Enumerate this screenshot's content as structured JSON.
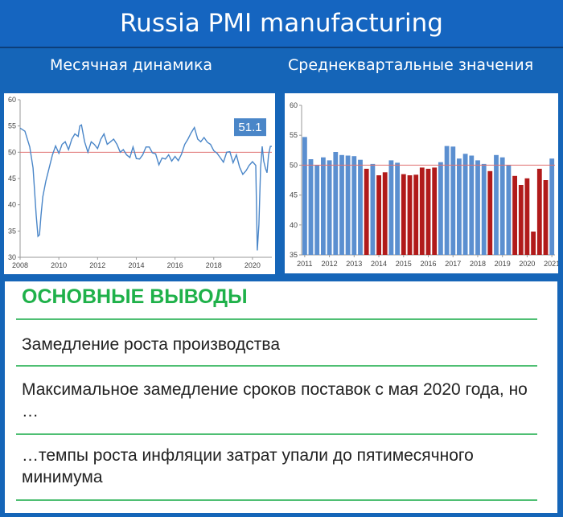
{
  "header": {
    "title": "Russia PMI manufacturing"
  },
  "panels": {
    "left_subtitle": "Месячная динамика",
    "right_subtitle": "Среднеквартальные значения"
  },
  "findings": {
    "title": "ОСНОВНЫЕ ВЫВОДЫ",
    "items": [
      "Замедление роста производства",
      "Максимальное замедление сроков поставок с мая 2020 года, но …",
      "…темпы роста инфляции затрат упали до пятимесячного минимума"
    ]
  },
  "chart_data": [
    {
      "type": "line",
      "xlim": [
        2008,
        2021
      ],
      "ylim": [
        30,
        60
      ],
      "x_ticks": [
        "2008",
        "2010",
        "2012",
        "2014",
        "2016",
        "2018",
        "2020"
      ],
      "y_ticks": [
        "30",
        "35",
        "40",
        "45",
        "50",
        "55",
        "60"
      ],
      "reference_line": 50,
      "line_color": "#4a86c8",
      "reference_color": "#e07070",
      "callout": {
        "label": "51.1",
        "color": "#4a86c8"
      },
      "x": [
        2008.0,
        2008.25,
        2008.5,
        2008.67,
        2008.83,
        2008.92,
        2009.0,
        2009.08,
        2009.17,
        2009.33,
        2009.5,
        2009.67,
        2009.83,
        2010.0,
        2010.17,
        2010.33,
        2010.5,
        2010.67,
        2010.83,
        2011.0,
        2011.08,
        2011.17,
        2011.33,
        2011.5,
        2011.67,
        2011.83,
        2012.0,
        2012.17,
        2012.33,
        2012.5,
        2012.67,
        2012.83,
        2013.0,
        2013.17,
        2013.33,
        2013.5,
        2013.67,
        2013.83,
        2014.0,
        2014.17,
        2014.33,
        2014.5,
        2014.67,
        2014.83,
        2015.0,
        2015.17,
        2015.33,
        2015.5,
        2015.67,
        2015.83,
        2016.0,
        2016.17,
        2016.33,
        2016.5,
        2016.67,
        2016.83,
        2017.0,
        2017.17,
        2017.33,
        2017.5,
        2017.67,
        2017.83,
        2018.0,
        2018.17,
        2018.33,
        2018.5,
        2018.67,
        2018.83,
        2019.0,
        2019.17,
        2019.33,
        2019.5,
        2019.67,
        2019.83,
        2020.0,
        2020.17,
        2020.25,
        2020.33,
        2020.42,
        2020.5,
        2020.58,
        2020.67,
        2020.75,
        2020.83,
        2020.92,
        2021.0
      ],
      "y": [
        54.6,
        54.0,
        51.0,
        47.0,
        38.0,
        34.0,
        34.3,
        38.0,
        41.5,
        44.5,
        47.0,
        49.5,
        51.2,
        49.8,
        51.5,
        52.0,
        50.5,
        52.5,
        53.5,
        53.0,
        55.0,
        55.2,
        52.0,
        50.0,
        52.0,
        51.5,
        50.7,
        52.5,
        53.5,
        51.5,
        52.0,
        52.5,
        51.5,
        50.0,
        50.5,
        49.5,
        49.0,
        51.0,
        48.8,
        48.7,
        49.5,
        51.0,
        51.0,
        49.9,
        49.7,
        47.6,
        48.9,
        48.7,
        49.5,
        48.3,
        49.2,
        48.4,
        49.6,
        51.5,
        52.5,
        53.7,
        54.7,
        52.5,
        52.0,
        52.8,
        51.9,
        51.5,
        50.3,
        49.8,
        49.0,
        48.1,
        50.0,
        50.1,
        48.0,
        49.5,
        47.2,
        45.8,
        46.5,
        47.5,
        48.2,
        47.5,
        31.3,
        36.2,
        47.0,
        51.1,
        48.3,
        46.9,
        46.1,
        49.5,
        51.1,
        51.1
      ]
    },
    {
      "type": "bar",
      "ylim": [
        35,
        60
      ],
      "x_ticks": [
        "2011",
        "2012",
        "2013",
        "2014",
        "2015",
        "2016",
        "2017",
        "2018",
        "2019",
        "2020",
        "2021"
      ],
      "y_ticks": [
        "35",
        "40",
        "45",
        "50",
        "55",
        "60"
      ],
      "reference_line": 50,
      "colors": {
        "above": "#5b8fd0",
        "below": "#b11a1a",
        "reference": "#e07070"
      },
      "values": [
        54.7,
        51.0,
        50.0,
        51.3,
        50.8,
        52.2,
        51.7,
        51.6,
        51.5,
        50.9,
        49.4,
        50.2,
        48.3,
        48.8,
        50.8,
        50.4,
        48.5,
        48.3,
        48.4,
        49.6,
        49.4,
        49.6,
        50.5,
        53.2,
        53.1,
        51.1,
        51.9,
        51.6,
        50.8,
        50.2,
        49.0,
        51.7,
        51.3,
        50.0,
        48.2,
        46.7,
        47.8,
        38.9,
        49.4,
        47.5,
        51.1
      ]
    }
  ]
}
